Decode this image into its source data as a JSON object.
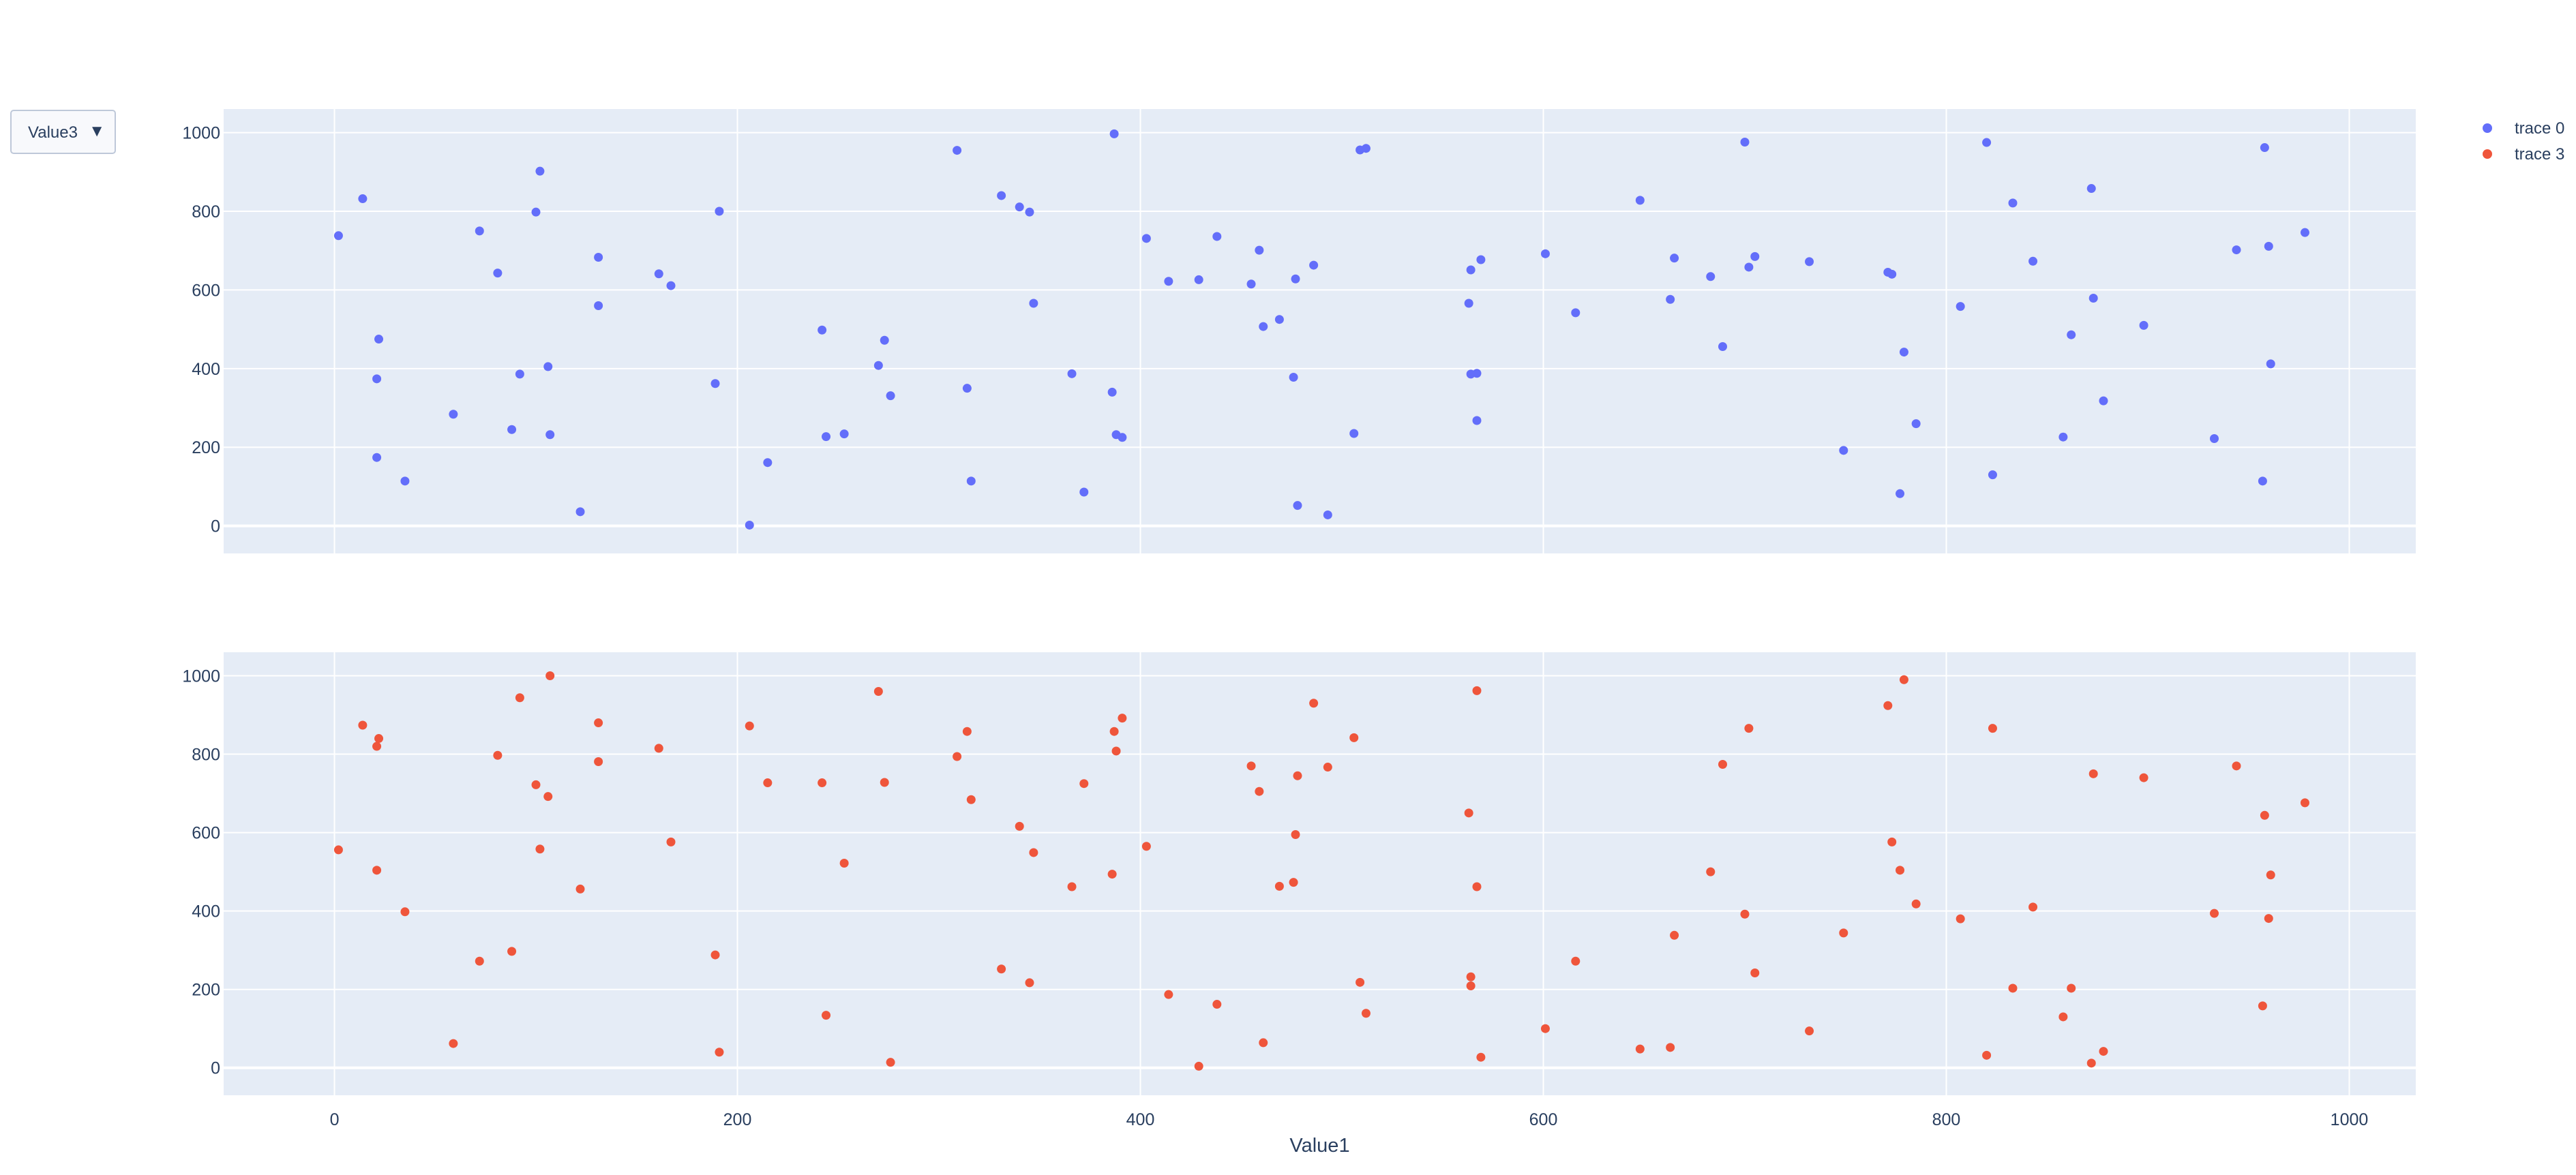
{
  "dropdown": {
    "selected": "Value3",
    "caret": "▼"
  },
  "chart_data": {
    "type": "scatter",
    "layout": "two stacked subplots sharing x axis",
    "xlabel": "Value1",
    "xlim": [
      -55,
      1033
    ],
    "ylim": [
      -70,
      1060
    ],
    "x_ticks": [
      0,
      200,
      400,
      600,
      800,
      1000
    ],
    "y_ticks": [
      0,
      200,
      400,
      600,
      800,
      1000
    ],
    "grid": true,
    "legend_position": "top-right",
    "colors": {
      "plot_bg": "#e5ecf6",
      "grid": "#ffffff",
      "text": "#2a3f5f"
    },
    "series": [
      {
        "name": "trace 0",
        "color": "#636efa",
        "points": [
          [
            2,
            738
          ],
          [
            14,
            832
          ],
          [
            21,
            174
          ],
          [
            21,
            374
          ],
          [
            22,
            475
          ],
          [
            35,
            114
          ],
          [
            59,
            284
          ],
          [
            72,
            750
          ],
          [
            81,
            643
          ],
          [
            88,
            245
          ],
          [
            92,
            386
          ],
          [
            100,
            798
          ],
          [
            102,
            902
          ],
          [
            106,
            405
          ],
          [
            107,
            232
          ],
          [
            122,
            36
          ],
          [
            131,
            683
          ],
          [
            131,
            560
          ],
          [
            161,
            641
          ],
          [
            167,
            611
          ],
          [
            189,
            362
          ],
          [
            191,
            800
          ],
          [
            206,
            2
          ],
          [
            215,
            161
          ],
          [
            242,
            498
          ],
          [
            244,
            227
          ],
          [
            253,
            234
          ],
          [
            270,
            408
          ],
          [
            273,
            472
          ],
          [
            276,
            331
          ],
          [
            309,
            955
          ],
          [
            314,
            350
          ],
          [
            316,
            114
          ],
          [
            331,
            840
          ],
          [
            340,
            811
          ],
          [
            345,
            798
          ],
          [
            347,
            566
          ],
          [
            366,
            387
          ],
          [
            372,
            86
          ],
          [
            386,
            340
          ],
          [
            387,
            997
          ],
          [
            388,
            232
          ],
          [
            391,
            225
          ],
          [
            403,
            731
          ],
          [
            414,
            622
          ],
          [
            429,
            626
          ],
          [
            438,
            736
          ],
          [
            455,
            615
          ],
          [
            459,
            701
          ],
          [
            461,
            507
          ],
          [
            469,
            525
          ],
          [
            476,
            378
          ],
          [
            477,
            628
          ],
          [
            478,
            52
          ],
          [
            486,
            663
          ],
          [
            493,
            28
          ],
          [
            506,
            235
          ],
          [
            509,
            956
          ],
          [
            512,
            960
          ],
          [
            563,
            566
          ],
          [
            564,
            386
          ],
          [
            564,
            651
          ],
          [
            567,
            388
          ],
          [
            567,
            268
          ],
          [
            569,
            677
          ],
          [
            601,
            692
          ],
          [
            616,
            542
          ],
          [
            648,
            828
          ],
          [
            663,
            576
          ],
          [
            665,
            681
          ],
          [
            683,
            634
          ],
          [
            689,
            456
          ],
          [
            700,
            976
          ],
          [
            702,
            658
          ],
          [
            705,
            685
          ],
          [
            732,
            672
          ],
          [
            749,
            192
          ],
          [
            771,
            645
          ],
          [
            773,
            640
          ],
          [
            777,
            82
          ],
          [
            779,
            442
          ],
          [
            785,
            260
          ],
          [
            807,
            558
          ],
          [
            820,
            975
          ],
          [
            823,
            130
          ],
          [
            833,
            821
          ],
          [
            843,
            673
          ],
          [
            858,
            226
          ],
          [
            862,
            486
          ],
          [
            872,
            858
          ],
          [
            873,
            579
          ],
          [
            878,
            318
          ],
          [
            898,
            510
          ],
          [
            933,
            222
          ],
          [
            944,
            702
          ],
          [
            957,
            114
          ],
          [
            958,
            962
          ],
          [
            960,
            711
          ],
          [
            961,
            412
          ],
          [
            978,
            746
          ]
        ]
      },
      {
        "name": "trace 3",
        "color": "#ef553b",
        "points": [
          [
            2,
            556
          ],
          [
            14,
            874
          ],
          [
            21,
            820
          ],
          [
            22,
            840
          ],
          [
            21,
            504
          ],
          [
            35,
            398
          ],
          [
            59,
            62
          ],
          [
            72,
            272
          ],
          [
            81,
            797
          ],
          [
            88,
            297
          ],
          [
            92,
            944
          ],
          [
            100,
            722
          ],
          [
            102,
            558
          ],
          [
            106,
            692
          ],
          [
            107,
            1000
          ],
          [
            122,
            456
          ],
          [
            131,
            880
          ],
          [
            131,
            781
          ],
          [
            161,
            815
          ],
          [
            167,
            576
          ],
          [
            189,
            288
          ],
          [
            191,
            40
          ],
          [
            206,
            872
          ],
          [
            215,
            727
          ],
          [
            242,
            727
          ],
          [
            244,
            134
          ],
          [
            253,
            522
          ],
          [
            270,
            960
          ],
          [
            273,
            728
          ],
          [
            276,
            14
          ],
          [
            309,
            794
          ],
          [
            314,
            858
          ],
          [
            316,
            684
          ],
          [
            331,
            252
          ],
          [
            340,
            616
          ],
          [
            345,
            217
          ],
          [
            347,
            549
          ],
          [
            366,
            462
          ],
          [
            372,
            725
          ],
          [
            386,
            494
          ],
          [
            387,
            858
          ],
          [
            388,
            808
          ],
          [
            391,
            892
          ],
          [
            403,
            565
          ],
          [
            414,
            187
          ],
          [
            429,
            4
          ],
          [
            438,
            162
          ],
          [
            455,
            770
          ],
          [
            459,
            705
          ],
          [
            461,
            64
          ],
          [
            469,
            463
          ],
          [
            476,
            473
          ],
          [
            477,
            595
          ],
          [
            478,
            745
          ],
          [
            486,
            930
          ],
          [
            493,
            767
          ],
          [
            506,
            842
          ],
          [
            509,
            218
          ],
          [
            512,
            139
          ],
          [
            563,
            650
          ],
          [
            564,
            209
          ],
          [
            564,
            232
          ],
          [
            567,
            962
          ],
          [
            567,
            462
          ],
          [
            569,
            27
          ],
          [
            601,
            100
          ],
          [
            616,
            272
          ],
          [
            648,
            48
          ],
          [
            663,
            52
          ],
          [
            665,
            338
          ],
          [
            683,
            500
          ],
          [
            689,
            774
          ],
          [
            700,
            392
          ],
          [
            702,
            866
          ],
          [
            705,
            242
          ],
          [
            732,
            94
          ],
          [
            749,
            344
          ],
          [
            771,
            924
          ],
          [
            773,
            576
          ],
          [
            777,
            504
          ],
          [
            779,
            990
          ],
          [
            785,
            418
          ],
          [
            807,
            380
          ],
          [
            820,
            32
          ],
          [
            823,
            866
          ],
          [
            833,
            203
          ],
          [
            843,
            410
          ],
          [
            858,
            130
          ],
          [
            862,
            203
          ],
          [
            872,
            12
          ],
          [
            873,
            750
          ],
          [
            878,
            42
          ],
          [
            898,
            740
          ],
          [
            933,
            394
          ],
          [
            944,
            770
          ],
          [
            957,
            158
          ],
          [
            958,
            644
          ],
          [
            960,
            381
          ],
          [
            961,
            492
          ],
          [
            978,
            676
          ]
        ]
      }
    ]
  }
}
